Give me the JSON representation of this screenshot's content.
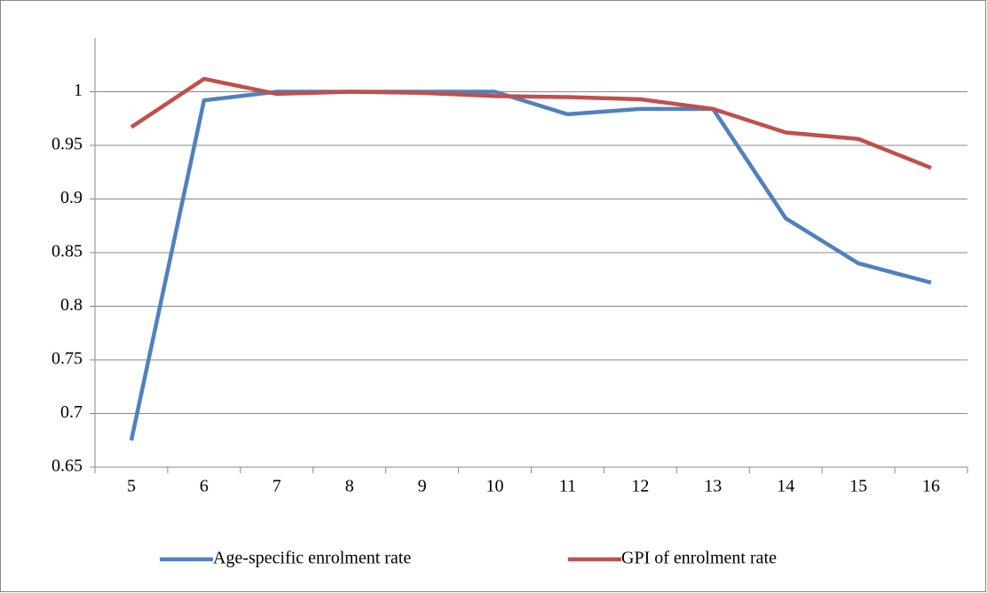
{
  "chart_data": {
    "type": "line",
    "categories": [
      "5",
      "6",
      "7",
      "8",
      "9",
      "10",
      "11",
      "12",
      "13",
      "14",
      "15",
      "16"
    ],
    "series": [
      {
        "name": "Age-specific enrolment rate",
        "color": "#4f81bd",
        "values": [
          0.675,
          0.992,
          1.0,
          1.0,
          1.0,
          1.0,
          0.979,
          0.984,
          0.984,
          0.882,
          0.84,
          0.822
        ]
      },
      {
        "name": "GPI of enrolment rate",
        "color": "#c0504d",
        "values": [
          0.967,
          1.012,
          0.998,
          1.0,
          0.999,
          0.996,
          0.995,
          0.993,
          0.984,
          0.962,
          0.956,
          0.929
        ]
      }
    ],
    "ylim": [
      0.65,
      1.05
    ],
    "yticks": [
      0.65,
      0.7,
      0.75,
      0.8,
      0.85,
      0.9,
      0.95,
      1
    ],
    "grid": true,
    "legend": "bottom"
  }
}
